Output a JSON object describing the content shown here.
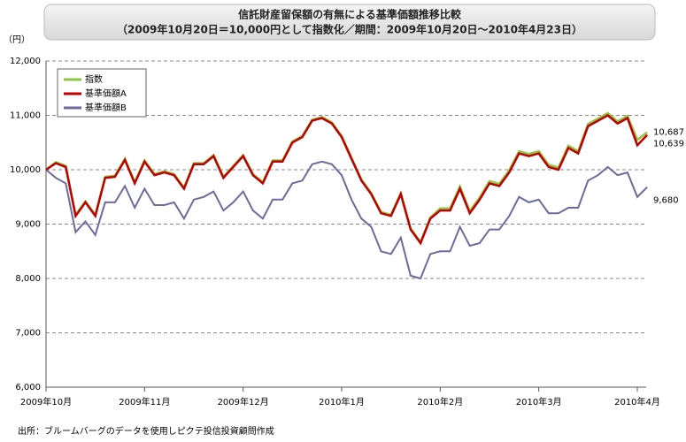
{
  "chart_data": {
    "type": "line",
    "title": "信託財産留保額の有無による基準価額推移比較",
    "subtitle": "（2009年10月20日＝10,000円として指数化／期間：2009年10月20日～2010年4月23日）",
    "y_unit": "（円）",
    "source": "出所：ブルームバーグのデータを使用しピクテ投信投資顧問作成",
    "categories": [
      "2009年10月",
      null,
      null,
      null,
      null,
      null,
      null,
      null,
      null,
      null,
      "2009年11月",
      null,
      null,
      null,
      null,
      null,
      null,
      null,
      null,
      null,
      "2009年12月",
      null,
      null,
      null,
      null,
      null,
      null,
      null,
      null,
      null,
      "2010年1月",
      null,
      null,
      null,
      null,
      null,
      null,
      null,
      null,
      null,
      "2010年2月",
      null,
      null,
      null,
      null,
      null,
      null,
      null,
      null,
      null,
      "2010年3月",
      null,
      null,
      null,
      null,
      null,
      null,
      null,
      null,
      null,
      "2010年4月",
      null
    ],
    "series": [
      {
        "name": "指数",
        "color": "#8dc63f",
        "values": [
          10000,
          10140,
          10070,
          9170,
          9420,
          9170,
          9870,
          9890,
          10200,
          9770,
          10170,
          9920,
          9970,
          9920,
          9670,
          10120,
          10120,
          10270,
          9870,
          10070,
          10270,
          9920,
          9770,
          10170,
          10170,
          10520,
          10620,
          10920,
          10970,
          10870,
          10620,
          10220,
          9820,
          9570,
          9220,
          9170,
          9570,
          8920,
          8670,
          9120,
          9290,
          9290,
          9690,
          9240,
          9490,
          9790,
          9740,
          9990,
          10340,
          10290,
          10340,
          10090,
          10040,
          10440,
          10340,
          10840,
          10940,
          11040,
          10890,
          10990,
          10550,
          10687
        ],
        "value_labels": [
          null,
          null,
          null,
          null,
          null,
          null,
          null,
          null,
          null,
          null,
          null,
          null,
          null,
          null,
          null,
          null,
          null,
          null,
          null,
          null,
          null,
          null,
          null,
          null,
          null,
          null,
          null,
          null,
          null,
          null,
          null,
          null,
          null,
          null,
          null,
          null,
          null,
          null,
          null,
          null,
          null,
          null,
          null,
          null,
          null,
          null,
          null,
          null,
          null,
          null,
          null,
          null,
          null,
          null,
          null,
          null,
          null,
          null,
          null,
          null,
          null,
          "10,687"
        ]
      },
      {
        "name": "基準価額A",
        "color": "#c00000",
        "values": [
          10000,
          10120,
          10050,
          9150,
          9400,
          9150,
          9850,
          9870,
          10180,
          9750,
          10150,
          9900,
          9950,
          9900,
          9650,
          10100,
          10100,
          10250,
          9850,
          10050,
          10250,
          9900,
          9750,
          10150,
          10150,
          10500,
          10600,
          10900,
          10950,
          10850,
          10600,
          10200,
          9800,
          9550,
          9200,
          9150,
          9550,
          8900,
          8650,
          9100,
          9250,
          9250,
          9650,
          9200,
          9450,
          9750,
          9700,
          9950,
          10300,
          10250,
          10300,
          10050,
          10000,
          10400,
          10300,
          10800,
          10900,
          11000,
          10850,
          10950,
          10450,
          10639
        ],
        "value_labels": [
          null,
          null,
          null,
          null,
          null,
          null,
          null,
          null,
          null,
          null,
          null,
          null,
          null,
          null,
          null,
          null,
          null,
          null,
          null,
          null,
          null,
          null,
          null,
          null,
          null,
          null,
          null,
          null,
          null,
          null,
          null,
          null,
          null,
          null,
          null,
          null,
          null,
          null,
          null,
          null,
          null,
          null,
          null,
          null,
          null,
          null,
          null,
          null,
          null,
          null,
          null,
          null,
          null,
          null,
          null,
          null,
          null,
          null,
          null,
          null,
          null,
          "10,639"
        ]
      },
      {
        "name": "基準価額B",
        "color": "#6b6b9e",
        "values": [
          10000,
          9850,
          9750,
          8850,
          9050,
          8800,
          9400,
          9400,
          9700,
          9300,
          9650,
          9350,
          9350,
          9400,
          9100,
          9450,
          9500,
          9600,
          9250,
          9400,
          9600,
          9250,
          9100,
          9450,
          9450,
          9750,
          9800,
          10100,
          10150,
          10100,
          9900,
          9450,
          9100,
          8950,
          8500,
          8450,
          8750,
          8050,
          8000,
          8450,
          8500,
          8500,
          8950,
          8600,
          8650,
          8900,
          8900,
          9150,
          9500,
          9400,
          9450,
          9200,
          9200,
          9300,
          9300,
          9800,
          9900,
          10050,
          9900,
          9950,
          9500,
          9680
        ],
        "value_labels": [
          null,
          null,
          null,
          null,
          null,
          null,
          null,
          null,
          null,
          null,
          null,
          null,
          null,
          null,
          null,
          null,
          null,
          null,
          null,
          null,
          null,
          null,
          null,
          null,
          null,
          null,
          null,
          null,
          null,
          null,
          null,
          null,
          null,
          null,
          null,
          null,
          null,
          null,
          null,
          null,
          null,
          null,
          null,
          null,
          null,
          null,
          null,
          null,
          null,
          null,
          null,
          null,
          null,
          null,
          null,
          null,
          null,
          null,
          null,
          null,
          null,
          "9,680"
        ]
      }
    ],
    "ylim": [
      6000,
      12000
    ],
    "yticks": [
      {
        "value": 6000,
        "label": "6,000"
      },
      {
        "value": 7000,
        "label": "7,000"
      },
      {
        "value": 8000,
        "label": "8,000"
      },
      {
        "value": 9000,
        "label": "9,000"
      },
      {
        "value": 10000,
        "label": "10,000"
      },
      {
        "value": 11000,
        "label": "11,000"
      },
      {
        "value": 12000,
        "label": "12,000"
      }
    ],
    "grid": true,
    "legend": "upper left"
  }
}
